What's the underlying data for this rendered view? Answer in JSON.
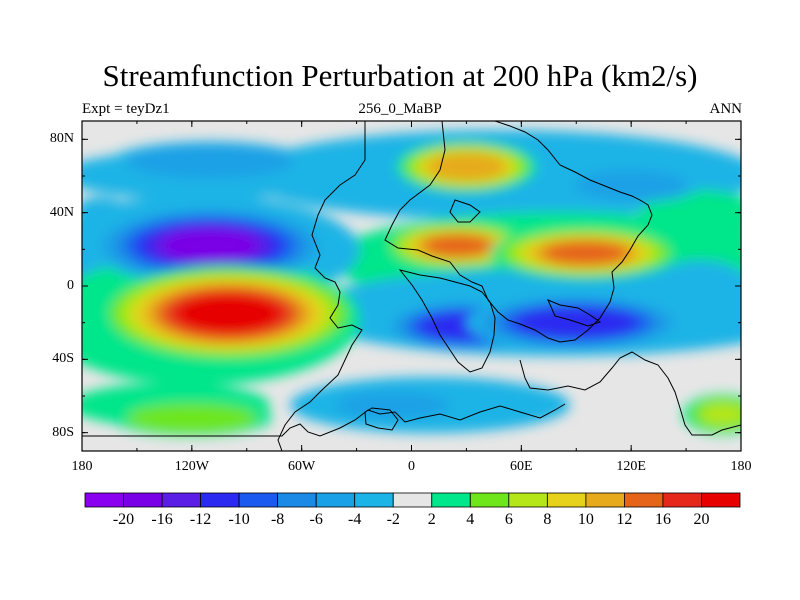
{
  "title": "Streamfunction Perturbation at 200 hPa (km2/s)",
  "subtitle_left": "Expt = teyDz1",
  "subtitle_center": "256_0_MaBP",
  "subtitle_right": "ANN",
  "chart_data": {
    "type": "heatmap",
    "map_projection": "cylindrical-equidistant",
    "x_range": [
      -180,
      180
    ],
    "y_range": [
      -90,
      90
    ],
    "lat_tick_labels": [
      "80N",
      "40N",
      "0",
      "40S",
      "80S"
    ],
    "lat_tick_values": [
      80,
      40,
      0,
      -40,
      -80
    ],
    "lon_tick_labels": [
      "180",
      "120W",
      "60W",
      "0",
      "60E",
      "120E",
      "180"
    ],
    "lon_tick_values": [
      -180,
      -120,
      -60,
      0,
      60,
      120,
      180
    ],
    "colorbar_labels": [
      "-20",
      "-16",
      "-12",
      "-10",
      "-8",
      "-6",
      "-4",
      "-2",
      "2",
      "4",
      "6",
      "8",
      "10",
      "12",
      "16",
      "20"
    ],
    "colorbar_levels": [
      -20,
      -16,
      -12,
      -10,
      -8,
      -6,
      -4,
      -2,
      2,
      4,
      6,
      8,
      10,
      12,
      16,
      20
    ],
    "colorbar_colors": [
      "#8a00f0",
      "#7a00e6",
      "#5a1ee6",
      "#2a2af0",
      "#1a5af0",
      "#1a8ae6",
      "#1aa0e6",
      "#1ab4e6",
      "#e6e6e6",
      "#00e68a",
      "#6ee61a",
      "#b4e61a",
      "#e6d21a",
      "#e6aa1a",
      "#e6641a",
      "#e6281a",
      "#e60000"
    ],
    "features": [
      {
        "name": "neg-north-pacific",
        "lon": -110,
        "lat": 22,
        "value": -20
      },
      {
        "name": "pos-south-pacific",
        "lon": -100,
        "lat": -15,
        "value": 22
      },
      {
        "name": "pos-north-africa-asia",
        "lon": 25,
        "lat": 22,
        "value": 16
      },
      {
        "name": "pos-asia",
        "lon": 95,
        "lat": 18,
        "value": 16
      },
      {
        "name": "pos-eurasia-high",
        "lon": 30,
        "lat": 65,
        "value": 13
      },
      {
        "name": "neg-indian-ocean",
        "lon": 30,
        "lat": -22,
        "value": -12
      },
      {
        "name": "neg-west-pacific",
        "lon": 90,
        "lat": -20,
        "value": -13
      },
      {
        "name": "neg-north-pacific-high",
        "lon": -110,
        "lat": 68,
        "value": -5
      },
      {
        "name": "neg-north-atlantic",
        "lon": -170,
        "lat": 42,
        "value": -3
      },
      {
        "name": "neg-east-asia-high",
        "lon": 120,
        "lat": 55,
        "value": -6
      },
      {
        "name": "pos-southern-ocean",
        "lon": -120,
        "lat": -72,
        "value": 6
      },
      {
        "name": "neg-south-atlantic",
        "lon": -10,
        "lat": -65,
        "value": -5
      },
      {
        "name": "pos-east-south",
        "lon": 170,
        "lat": -70,
        "value": 7
      }
    ]
  }
}
